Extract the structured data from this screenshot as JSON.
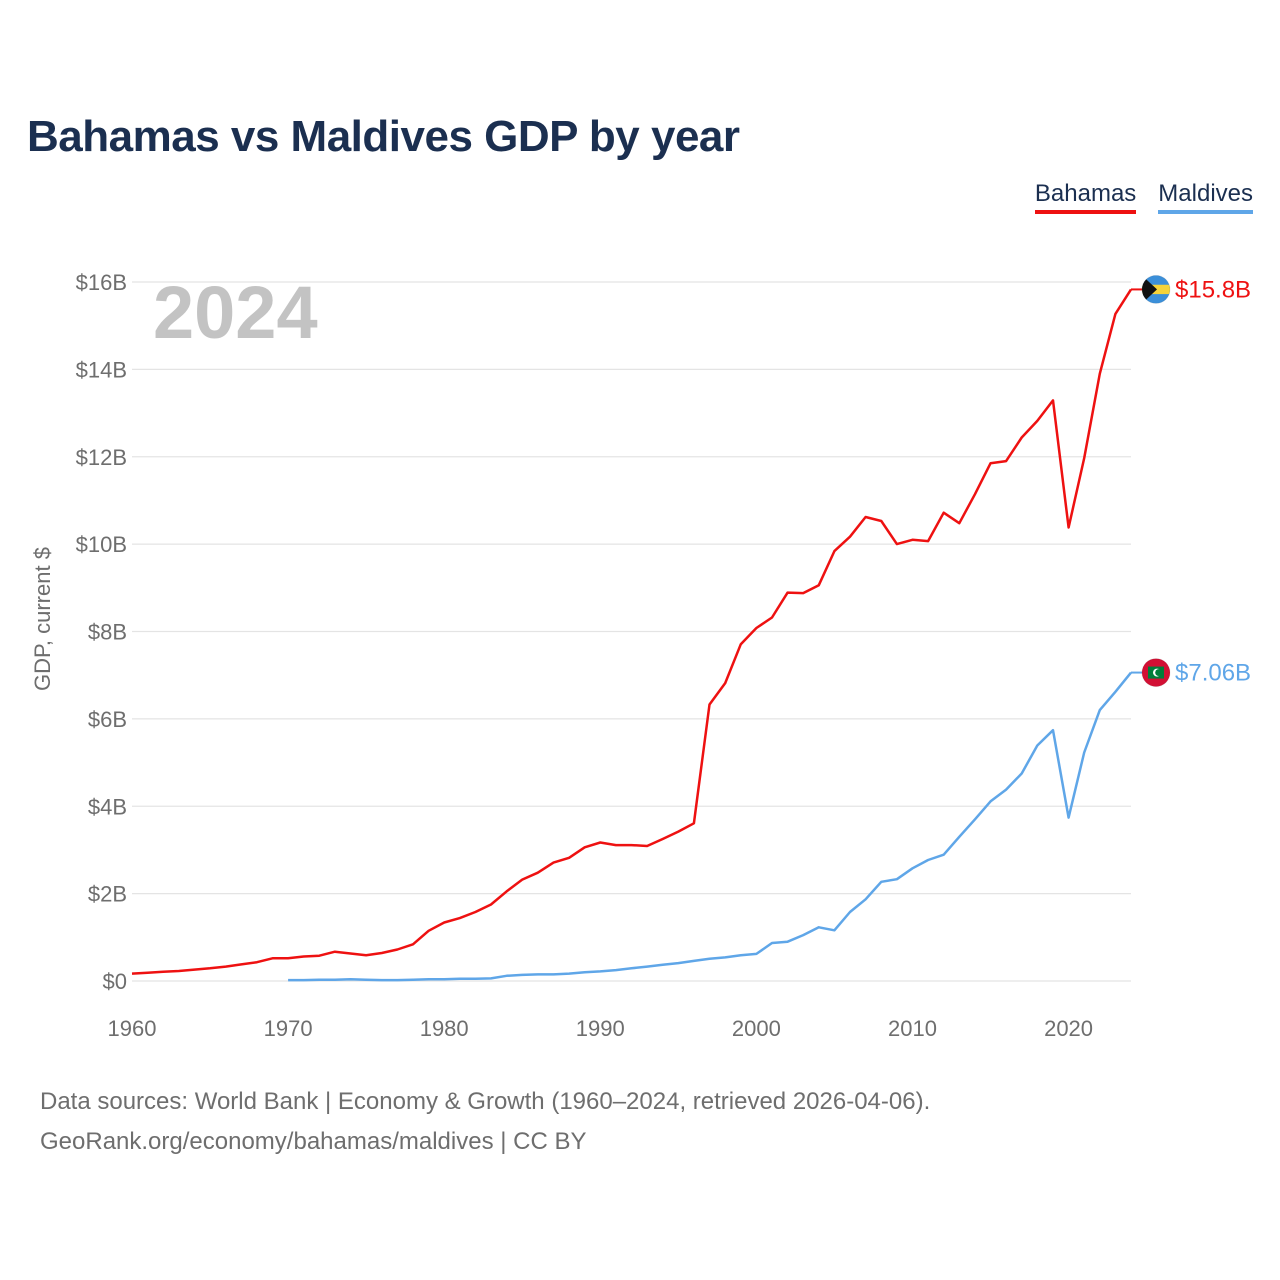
{
  "title": "Bahamas vs Maldives GDP by year",
  "legend": [
    {
      "label": "Bahamas",
      "color": "#ee1111"
    },
    {
      "label": "Maldives",
      "color": "#5fa6e8"
    }
  ],
  "year_watermark": "2024",
  "source_line1": "Data sources: World Bank | Economy & Growth (1960–2024, retrieved 2026-04-06).",
  "source_line2": "GeoRank.org/economy/bahamas/maldives | CC BY",
  "chart_data": {
    "type": "line",
    "title": "Bahamas vs Maldives GDP by year",
    "xlabel": "",
    "ylabel": "GDP, current $",
    "xlim": [
      1960,
      2024
    ],
    "ylim": [
      0,
      16
    ],
    "y_unit": "billion USD",
    "x_ticks": [
      1960,
      1970,
      1980,
      1990,
      2000,
      2010,
      2020
    ],
    "y_ticks": [
      0,
      2,
      4,
      6,
      8,
      10,
      12,
      14,
      16
    ],
    "y_tick_labels": [
      "$0",
      "$2B",
      "$4B",
      "$6B",
      "$8B",
      "$10B",
      "$12B",
      "$14B",
      "$16B"
    ],
    "grid": true,
    "legend_position": "top-right",
    "series": [
      {
        "name": "Bahamas",
        "color": "#ee1111",
        "end_label": "$15.8B",
        "icon": "bahamas-flag-icon",
        "x": [
          1960,
          1961,
          1962,
          1963,
          1964,
          1965,
          1966,
          1967,
          1968,
          1969,
          1970,
          1971,
          1972,
          1973,
          1974,
          1975,
          1976,
          1977,
          1978,
          1979,
          1980,
          1981,
          1982,
          1983,
          1984,
          1985,
          1986,
          1987,
          1988,
          1989,
          1990,
          1991,
          1992,
          1993,
          1994,
          1995,
          1996,
          1997,
          1998,
          1999,
          2000,
          2001,
          2002,
          2003,
          2004,
          2005,
          2006,
          2007,
          2008,
          2009,
          2010,
          2011,
          2012,
          2013,
          2014,
          2015,
          2016,
          2017,
          2018,
          2019,
          2020,
          2021,
          2022,
          2023,
          2024
        ],
        "values": [
          0.17,
          0.19,
          0.21,
          0.23,
          0.26,
          0.29,
          0.33,
          0.38,
          0.43,
          0.52,
          0.52,
          0.56,
          0.58,
          0.67,
          0.63,
          0.59,
          0.64,
          0.72,
          0.84,
          1.15,
          1.34,
          1.44,
          1.58,
          1.75,
          2.05,
          2.32,
          2.48,
          2.71,
          2.82,
          3.06,
          3.17,
          3.11,
          3.11,
          3.09,
          3.25,
          3.42,
          3.61,
          6.33,
          6.82,
          7.71,
          8.08,
          8.32,
          8.89,
          8.88,
          9.06,
          9.84,
          10.17,
          10.62,
          10.53,
          10.0,
          10.1,
          10.07,
          10.72,
          10.48,
          11.14,
          11.85,
          11.9,
          12.44,
          12.82,
          13.29,
          10.38,
          11.97,
          13.9,
          15.27,
          15.83
        ]
      },
      {
        "name": "Maldives",
        "color": "#5fa6e8",
        "end_label": "$7.06B",
        "icon": "maldives-flag-icon",
        "x": [
          1970,
          1971,
          1972,
          1973,
          1974,
          1975,
          1976,
          1977,
          1978,
          1979,
          1980,
          1981,
          1982,
          1983,
          1984,
          1985,
          1986,
          1987,
          1988,
          1989,
          1990,
          1991,
          1992,
          1993,
          1994,
          1995,
          1996,
          1997,
          1998,
          1999,
          2000,
          2001,
          2002,
          2003,
          2004,
          2005,
          2006,
          2007,
          2008,
          2009,
          2010,
          2011,
          2012,
          2013,
          2014,
          2015,
          2016,
          2017,
          2018,
          2019,
          2020,
          2021,
          2022,
          2023,
          2024
        ],
        "values": [
          0.02,
          0.02,
          0.03,
          0.03,
          0.04,
          0.03,
          0.02,
          0.02,
          0.03,
          0.04,
          0.04,
          0.05,
          0.05,
          0.06,
          0.12,
          0.14,
          0.15,
          0.15,
          0.17,
          0.2,
          0.22,
          0.25,
          0.29,
          0.33,
          0.37,
          0.41,
          0.46,
          0.51,
          0.54,
          0.59,
          0.62,
          0.87,
          0.9,
          1.05,
          1.23,
          1.16,
          1.58,
          1.87,
          2.27,
          2.33,
          2.58,
          2.77,
          2.89,
          3.3,
          3.7,
          4.11,
          4.38,
          4.75,
          5.39,
          5.74,
          3.74,
          5.23,
          6.2,
          6.62,
          7.06
        ]
      }
    ]
  }
}
